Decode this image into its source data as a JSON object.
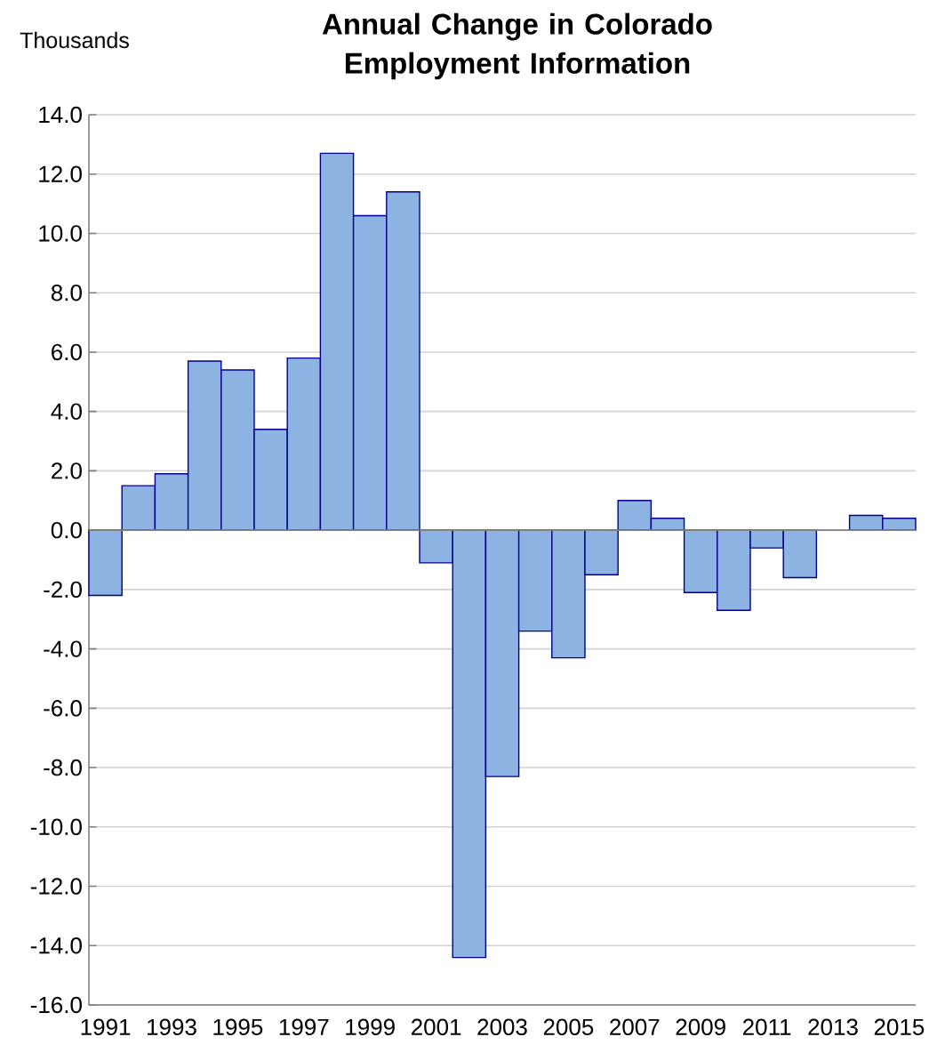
{
  "chart_data": {
    "type": "bar",
    "title": "Annual Change in Colorado Employment Information",
    "ylabel": "Thousands",
    "categories": [
      "1991",
      null,
      "1993",
      null,
      "1995",
      null,
      "1997",
      null,
      "1999",
      null,
      "2001",
      null,
      "2003",
      null,
      "2005",
      null,
      "2007",
      null,
      "2009",
      null,
      "2011",
      null,
      "2013",
      null,
      "2015"
    ],
    "values": [
      -2.2,
      1.5,
      1.9,
      5.7,
      5.4,
      3.4,
      5.8,
      12.7,
      10.6,
      11.4,
      -1.1,
      -14.4,
      -8.3,
      -3.4,
      -4.3,
      -1.5,
      1.0,
      0.4,
      -2.1,
      -2.7,
      -0.6,
      -1.6,
      null,
      0.5,
      0.4
    ],
    "color": "#8db3e2",
    "ylim": [
      -16,
      14
    ],
    "yticks": [
      {
        "value": -16,
        "label": "-16.0"
      },
      {
        "value": -14,
        "label": "-14.0"
      },
      {
        "value": -12,
        "label": "-12.0"
      },
      {
        "value": -10,
        "label": "-10.0"
      },
      {
        "value": -8,
        "label": "-8.0"
      },
      {
        "value": -6,
        "label": "-6.0"
      },
      {
        "value": -4,
        "label": "-4.0"
      },
      {
        "value": -2,
        "label": "-2.0"
      },
      {
        "value": 0,
        "label": "0.0"
      },
      {
        "value": 2,
        "label": "2.0"
      },
      {
        "value": 4,
        "label": "4.0"
      },
      {
        "value": 6,
        "label": "6.0"
      },
      {
        "value": 8,
        "label": "8.0"
      },
      {
        "value": 10,
        "label": "10.0"
      },
      {
        "value": 12,
        "label": "12.0"
      },
      {
        "value": 14,
        "label": "14.0"
      }
    ],
    "grid": "y"
  }
}
